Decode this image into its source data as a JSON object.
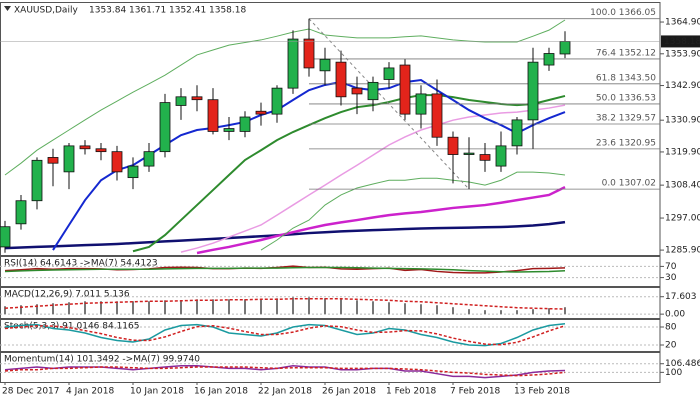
{
  "chart_data": [
    {
      "type": "candlestick",
      "symbol": "XAUUSD,Daily",
      "categories": [
        "28 Dec 2017",
        null,
        null,
        null,
        "4 Jan 2018",
        null,
        null,
        null,
        "10 Jan 2018",
        null,
        null,
        null,
        "16 Jan 2018",
        null,
        null,
        null,
        "22 Jan 2018",
        null,
        null,
        null,
        "26 Jan 2018",
        null,
        null,
        null,
        "1 Feb 2018",
        null,
        null,
        null,
        "7 Feb 2018",
        null,
        null,
        null,
        "13 Feb 2018",
        null,
        null,
        null
      ],
      "open": [
        1287,
        1295,
        1303,
        1318,
        1313,
        1322,
        1321,
        1320,
        1311,
        1315,
        1320,
        1336,
        1339,
        1338,
        1327,
        1327,
        1334,
        1333,
        1342,
        1359,
        1348,
        1351,
        1342,
        1338,
        1345,
        1350,
        1333,
        1340,
        1325,
        1319,
        1319,
        1315,
        1322,
        1331,
        1350,
        1353.84
      ],
      "high": [
        1296,
        1305,
        1318,
        1321,
        1323,
        1324,
        1323,
        1322,
        1318,
        1323,
        1340,
        1342,
        1343,
        1342,
        1332,
        1334,
        1337,
        1343,
        1362,
        1366.05,
        1356,
        1355,
        1346,
        1346,
        1351,
        1352,
        1343,
        1345,
        1327,
        1325,
        1323,
        1327,
        1332,
        1356,
        1356,
        1361.71
      ],
      "low": [
        1285,
        1293,
        1300,
        1308,
        1307,
        1319,
        1317,
        1310,
        1307,
        1313,
        1318,
        1331,
        1334,
        1326,
        1324,
        1325,
        1329,
        1330,
        1340,
        1346,
        1343,
        1336,
        1333,
        1334,
        1342,
        1331,
        1328,
        1322,
        1309,
        1307.02,
        1313,
        1313,
        1319,
        1321,
        1348,
        1352.41
      ],
      "close": [
        1294,
        1303,
        1317,
        1316,
        1322,
        1321,
        1320,
        1313,
        1315,
        1320,
        1337,
        1339,
        1338,
        1327,
        1328,
        1332,
        1333,
        1342,
        1359,
        1349,
        1352,
        1339,
        1340,
        1344,
        1349,
        1333,
        1340,
        1325,
        1319,
        1319.5,
        1317,
        1322,
        1331,
        1351,
        1354,
        1358.18
      ],
      "up_color": "#22b14c",
      "down_color": "#e3241b",
      "ylim": [
        1284.2,
        1370.8
      ],
      "yticks": [
        {
          "value": 1364.9,
          "label": "1364.90"
        },
        {
          "value": 1353.9,
          "label": "1353.90"
        },
        {
          "value": 1342.9,
          "label": "1342.90"
        },
        {
          "value": 1330.9,
          "label": "1330.90"
        },
        {
          "value": 1319.9,
          "label": "1319.90"
        },
        {
          "value": 1308.4,
          "label": "1308.40"
        },
        {
          "value": 1297,
          "label": "1297.00"
        },
        {
          "value": 1285.9,
          "label": "1285.90"
        }
      ],
      "lines": [
        {
          "color": "#101070",
          "width": 2.5,
          "values": [
            1286.6,
            1286.8,
            1287,
            1287.2,
            1287.4,
            1287.6,
            1287.8,
            1288,
            1288.3,
            1288.6,
            1288.9,
            1289.2,
            1289.5,
            1289.8,
            1290.1,
            1290.4,
            1290.7,
            1291,
            1291.4,
            1291.8,
            1292.1,
            1292.4,
            1292.6,
            1292.8,
            1293,
            1293.2,
            1293.4,
            1293.5,
            1293.6,
            1293.7,
            1293.8,
            1293.9,
            1294.1,
            1294.4,
            1294.9,
            1295.6
          ]
        },
        {
          "color": "#cc22cc",
          "width": 2.5,
          "values": [
            null,
            null,
            null,
            null,
            null,
            null,
            null,
            null,
            null,
            null,
            null,
            null,
            1284.9,
            1286,
            1287,
            1288.2,
            1289.4,
            1290.8,
            1292.1,
            1293.4,
            1294.6,
            1295.5,
            1296.3,
            1297.2,
            1298,
            1298.6,
            1299.1,
            1299.8,
            1300.5,
            1301,
            1301.5,
            1302.3,
            1303.2,
            1304.1,
            1305,
            1307.7
          ]
        },
        {
          "color": "#e99be3",
          "width": 1.5,
          "values": [
            null,
            null,
            null,
            null,
            null,
            null,
            null,
            null,
            null,
            null,
            null,
            1285.2,
            1286.6,
            1288.3,
            1290.4,
            1292.5,
            1294.6,
            1298,
            1301.5,
            1305,
            1308.4,
            1311.9,
            1315.3,
            1318.8,
            1322.3,
            1325.1,
            1327.5,
            1329.2,
            1330.9,
            1332,
            1332.7,
            1333.4,
            1333.7,
            1334.4,
            1335.1,
            1336.1
          ]
        },
        {
          "color": "#5fae5f",
          "width": 1,
          "values": [
            1311.9,
            1316,
            1320.5,
            1324,
            1327.5,
            1331,
            1334.4,
            1337.5,
            1340.6,
            1343.5,
            1346.5,
            1350,
            1353.5,
            1355.2,
            1356.9,
            1357.8,
            1358.7,
            1360,
            1361.4,
            1362.5,
            1360.4,
            1359.9,
            1359.4,
            1359.4,
            1359.4,
            1359.8,
            1360.1,
            1359.4,
            1358.7,
            1358.3,
            1358,
            1358,
            1358,
            1360,
            1362.1,
            1365.6
          ]
        },
        {
          "color": "#5fae5f",
          "width": 1,
          "values": [
            null,
            null,
            null,
            null,
            null,
            null,
            null,
            null,
            null,
            null,
            null,
            null,
            null,
            null,
            null,
            null,
            1285.9,
            1289.4,
            1293.5,
            1296.3,
            1301.5,
            1305,
            1307.4,
            1308.8,
            1310.1,
            1310.1,
            1310.8,
            1310.8,
            1310.1,
            1309.5,
            1308.4,
            1310.1,
            1312.9,
            1312.9,
            1312.6,
            1311.9
          ]
        },
        {
          "color": "#2e8b2e",
          "width": 2,
          "values": [
            null,
            null,
            null,
            null,
            null,
            null,
            null,
            null,
            1285.5,
            1287,
            1291.1,
            1296.3,
            1301.5,
            1306.7,
            1311.9,
            1317.1,
            1320.5,
            1324,
            1326.8,
            1329.2,
            1331.6,
            1333.7,
            1335.4,
            1336.1,
            1337.2,
            1338.6,
            1339.6,
            1339.6,
            1338.9,
            1337.9,
            1337.2,
            1336.5,
            1336.1,
            1336.5,
            1337.9,
            1339.3
          ]
        },
        {
          "color": "#1428d0",
          "width": 2,
          "values": [
            null,
            null,
            null,
            1285.9,
            1294.6,
            1303.2,
            1310.1,
            1313.6,
            1315.3,
            1318.8,
            1322.3,
            1325.7,
            1327.5,
            1328.2,
            1329.2,
            1330.3,
            1332.7,
            1334.4,
            1337.9,
            1341.3,
            1343.1,
            1344.1,
            1342,
            1341.3,
            1342,
            1344.1,
            1344.8,
            1341.3,
            1337.9,
            1334.4,
            1331.6,
            1329.2,
            1326.4,
            1329.2,
            1331.6,
            1333.7
          ]
        }
      ],
      "fib_levels": [
        {
          "label": "100.0 1366.05",
          "value": 1366.05
        },
        {
          "label": "76.4 1352.12",
          "value": 1352.12
        },
        {
          "label": "61.8 1343.50",
          "value": 1343.5
        },
        {
          "label": "50.0 1336.53",
          "value": 1336.53
        },
        {
          "label": "38.2 1329.57",
          "value": 1329.57
        },
        {
          "label": "23.6 1320.95",
          "value": 1320.95
        },
        {
          "label": "0.0 1307.02",
          "value": 1307.02
        }
      ]
    },
    {
      "type": "line",
      "title": "RSI(14) 64.6143 ->MA(7) 54.4123",
      "ylim": [
        0,
        100
      ],
      "yticks": [
        70,
        30
      ],
      "series": [
        {
          "color": "#a01818",
          "dashed": false,
          "values": [
            55,
            58,
            62,
            60,
            62,
            62,
            61,
            58,
            59,
            61,
            66,
            67,
            66,
            62,
            62,
            64,
            63,
            66,
            71,
            66,
            67,
            61,
            60,
            62,
            64,
            56,
            59,
            52,
            48,
            47,
            47,
            50,
            55,
            62,
            63,
            64.6143
          ]
        },
        {
          "color": "#2e8b2e",
          "dashed": false,
          "values": [
            52,
            54,
            56,
            57,
            58,
            59,
            60,
            60,
            60,
            60,
            61,
            62,
            63,
            63,
            63,
            64,
            64,
            64,
            65,
            66,
            66,
            66,
            65,
            64,
            63,
            62,
            61,
            60,
            58,
            55,
            53,
            51,
            50,
            51,
            52,
            54.4123
          ]
        }
      ]
    },
    {
      "type": "bar",
      "title": "MACD(12,26,9) 7.011 5.136",
      "ylim": [
        -3.9,
        25.4
      ],
      "yticks": [
        {
          "value": 17.603,
          "label": "17.603"
        },
        {
          "value": 0,
          "label": "0.00"
        }
      ],
      "color": "#777777",
      "values": [
        8,
        9,
        10,
        11,
        12,
        13,
        13,
        13,
        13,
        13,
        14,
        14,
        15,
        15,
        15,
        15,
        15,
        16,
        17,
        17,
        16,
        15,
        14,
        13,
        12,
        11,
        10,
        9,
        7,
        5,
        4,
        4,
        4,
        5,
        6,
        7.011
      ],
      "series": [
        {
          "color": "#d02020",
          "dashed": true,
          "values": [
            6,
            7,
            8,
            9,
            10,
            11,
            11.5,
            12,
            12.5,
            13,
            13,
            13.5,
            14,
            14,
            14.5,
            14.5,
            15,
            15,
            15.5,
            15.5,
            15.5,
            15.5,
            15,
            14.5,
            14,
            13,
            12.5,
            11.5,
            10.5,
            9.5,
            8.5,
            7.5,
            6.5,
            6,
            5.5,
            5.136
          ]
        }
      ]
    },
    {
      "type": "line",
      "title": "Stoch(5,3,3) 91.0146 84.1165",
      "ylim": [
        0,
        100
      ],
      "yticks": [
        80,
        20
      ],
      "series": [
        {
          "color": "#1a9aa0",
          "dashed": false,
          "values": [
            80,
            85,
            88,
            75,
            70,
            60,
            45,
            35,
            30,
            40,
            70,
            85,
            88,
            80,
            60,
            55,
            50,
            60,
            80,
            88,
            85,
            70,
            55,
            60,
            75,
            70,
            55,
            45,
            30,
            20,
            18,
            25,
            45,
            70,
            85,
            91.0146
          ]
        },
        {
          "color": "#d02020",
          "dashed": true,
          "values": [
            75,
            80,
            84,
            83,
            78,
            68,
            58,
            45,
            36,
            35,
            47,
            65,
            81,
            84,
            76,
            65,
            55,
            55,
            63,
            76,
            84,
            81,
            70,
            62,
            63,
            68,
            67,
            57,
            43,
            32,
            23,
            21,
            29,
            47,
            67,
            84.1165
          ]
        }
      ]
    },
    {
      "type": "line",
      "title": "Momentum(14) 101.3492 ->MA(7) 99.9740",
      "ylim": [
        93.5,
        113.8
      ],
      "yticks": [
        {
          "value": 106.4868,
          "label": "106.4868"
        },
        100
      ],
      "series": [
        {
          "color": "#8a2a9a",
          "dashed": false,
          "values": [
            102,
            103,
            104,
            103,
            104,
            104,
            104,
            103,
            102,
            103,
            104,
            105,
            105,
            104,
            103,
            103,
            102,
            103,
            105,
            104,
            104,
            102,
            102,
            103,
            103,
            101,
            101,
            99,
            97,
            97,
            96,
            97,
            98,
            100,
            101,
            101.3492
          ]
        },
        {
          "color": "#d02020",
          "dashed": true,
          "values": [
            101,
            102,
            102,
            103,
            103,
            103.5,
            104,
            104,
            103.5,
            103,
            103,
            103.5,
            104,
            104,
            104,
            104,
            103.5,
            103,
            103.5,
            103.5,
            103.5,
            103,
            103,
            103,
            103,
            102.5,
            102,
            101,
            100,
            99.5,
            98.5,
            98,
            97.5,
            98,
            98.8,
            99.974
          ]
        }
      ]
    }
  ]
}
